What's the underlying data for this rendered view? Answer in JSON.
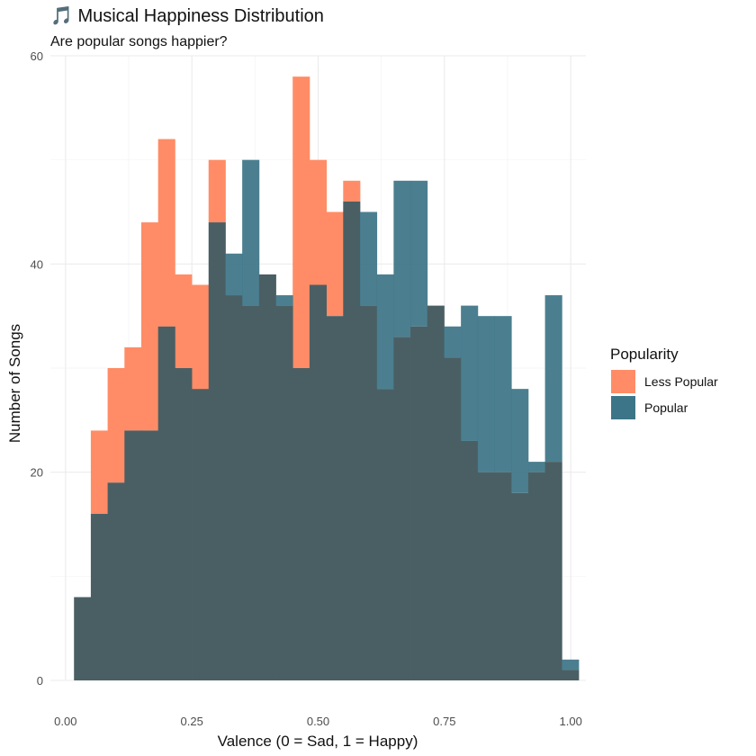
{
  "chart_data": {
    "type": "histogram",
    "title": "🎵 Musical Happiness Distribution",
    "subtitle": "Are popular songs happier?",
    "xlabel": "Valence (0 = Sad, 1 = Happy)",
    "ylabel": "Number of Songs",
    "xlim": [
      -0.03,
      1.03
    ],
    "ylim": [
      0,
      60
    ],
    "x_ticks": [
      "0.00",
      "0.25",
      "0.50",
      "0.75",
      "1.00"
    ],
    "x_tick_values": [
      0,
      0.25,
      0.5,
      0.75,
      1.0
    ],
    "y_ticks": [
      "0",
      "20",
      "40",
      "60"
    ],
    "y_tick_values": [
      0,
      20,
      40,
      60
    ],
    "bin_width": 0.0333,
    "bin_start": 0.0167,
    "legend": {
      "title": "Popularity",
      "position": "right",
      "entries": [
        {
          "label": "Less Popular",
          "color": "#FF8C66"
        },
        {
          "label": "Popular",
          "color": "#3D7588"
        }
      ]
    },
    "overlap_color": "#4A5F64",
    "series": [
      {
        "name": "Less Popular",
        "color": "#FF8C66",
        "values": [
          8,
          24,
          30,
          32,
          44,
          52,
          39,
          38,
          50,
          37,
          36,
          39,
          36,
          58,
          50,
          45,
          48,
          36,
          28,
          33,
          34,
          36,
          31,
          23,
          20,
          20,
          18,
          20,
          21,
          1
        ]
      },
      {
        "name": "Popular",
        "color": "#3D7588",
        "values": [
          8,
          16,
          19,
          24,
          24,
          34,
          30,
          28,
          44,
          41,
          50,
          39,
          37,
          30,
          38,
          35,
          46,
          45,
          39,
          48,
          48,
          36,
          34,
          36,
          35,
          35,
          28,
          21,
          37,
          2
        ]
      }
    ]
  }
}
